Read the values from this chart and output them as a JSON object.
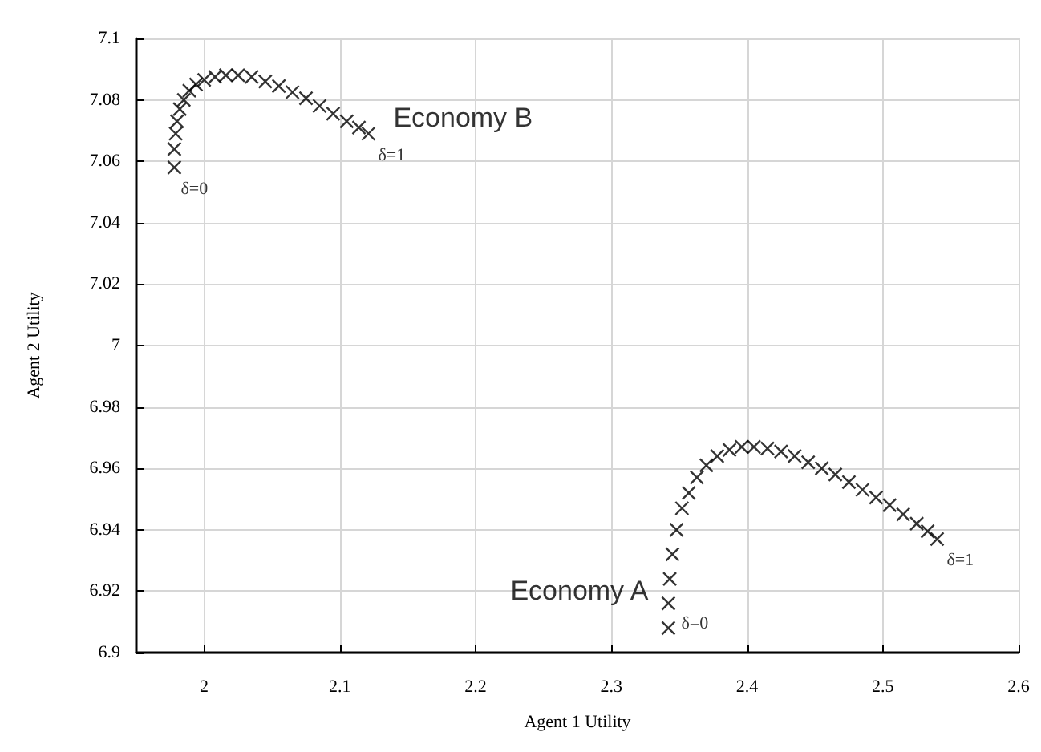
{
  "chart_data": {
    "type": "scatter",
    "xlabel": "Agent 1 Utility",
    "ylabel": "Agent 2 Utility",
    "xlim": [
      1.95,
      2.6
    ],
    "xticks": [
      2,
      2.1,
      2.2,
      2.3,
      2.4,
      2.5,
      2.6
    ],
    "ylim": [
      6.9,
      7.1
    ],
    "yticks": [
      6.9,
      6.92,
      6.94,
      6.96,
      6.98,
      7,
      7.02,
      7.04,
      7.06,
      7.08,
      7.1
    ],
    "grid": true,
    "marker": "cross",
    "series": [
      {
        "name": "Economy B",
        "color": "#000000",
        "x": [
          1.978,
          1.978,
          1.979,
          1.98,
          1.982,
          1.985,
          1.989,
          1.994,
          2.0,
          2.008,
          2.016,
          2.025,
          2.035,
          2.045,
          2.055,
          2.065,
          2.075,
          2.085,
          2.095,
          2.105,
          2.114,
          2.121
        ],
        "values": [
          7.058,
          7.064,
          7.069,
          7.073,
          7.077,
          7.08,
          7.083,
          7.085,
          7.0865,
          7.0875,
          7.088,
          7.088,
          7.0875,
          7.086,
          7.0845,
          7.0825,
          7.0805,
          7.078,
          7.0755,
          7.073,
          7.071,
          7.069
        ]
      },
      {
        "name": "Economy A",
        "color": "#000000",
        "x": [
          2.342,
          2.342,
          2.343,
          2.345,
          2.348,
          2.352,
          2.357,
          2.363,
          2.37,
          2.378,
          2.387,
          2.396,
          2.405,
          2.415,
          2.425,
          2.435,
          2.445,
          2.455,
          2.465,
          2.475,
          2.485,
          2.495,
          2.505,
          2.515,
          2.525,
          2.533,
          2.54
        ],
        "values": [
          6.908,
          6.916,
          6.924,
          6.932,
          6.94,
          6.947,
          6.952,
          6.957,
          6.961,
          6.964,
          6.966,
          6.967,
          6.967,
          6.9665,
          6.9655,
          6.964,
          6.962,
          6.96,
          6.958,
          6.9555,
          6.953,
          6.9505,
          6.948,
          6.945,
          6.942,
          6.9395,
          6.937
        ]
      }
    ],
    "annotations": [
      {
        "text": "δ=0",
        "x": 1.978,
        "y": 7.058
      },
      {
        "text": "δ=1",
        "x": 2.121,
        "y": 7.069
      },
      {
        "text": "δ=0",
        "x": 2.342,
        "y": 6.908
      },
      {
        "text": "δ=1",
        "x": 2.54,
        "y": 6.937
      }
    ]
  }
}
